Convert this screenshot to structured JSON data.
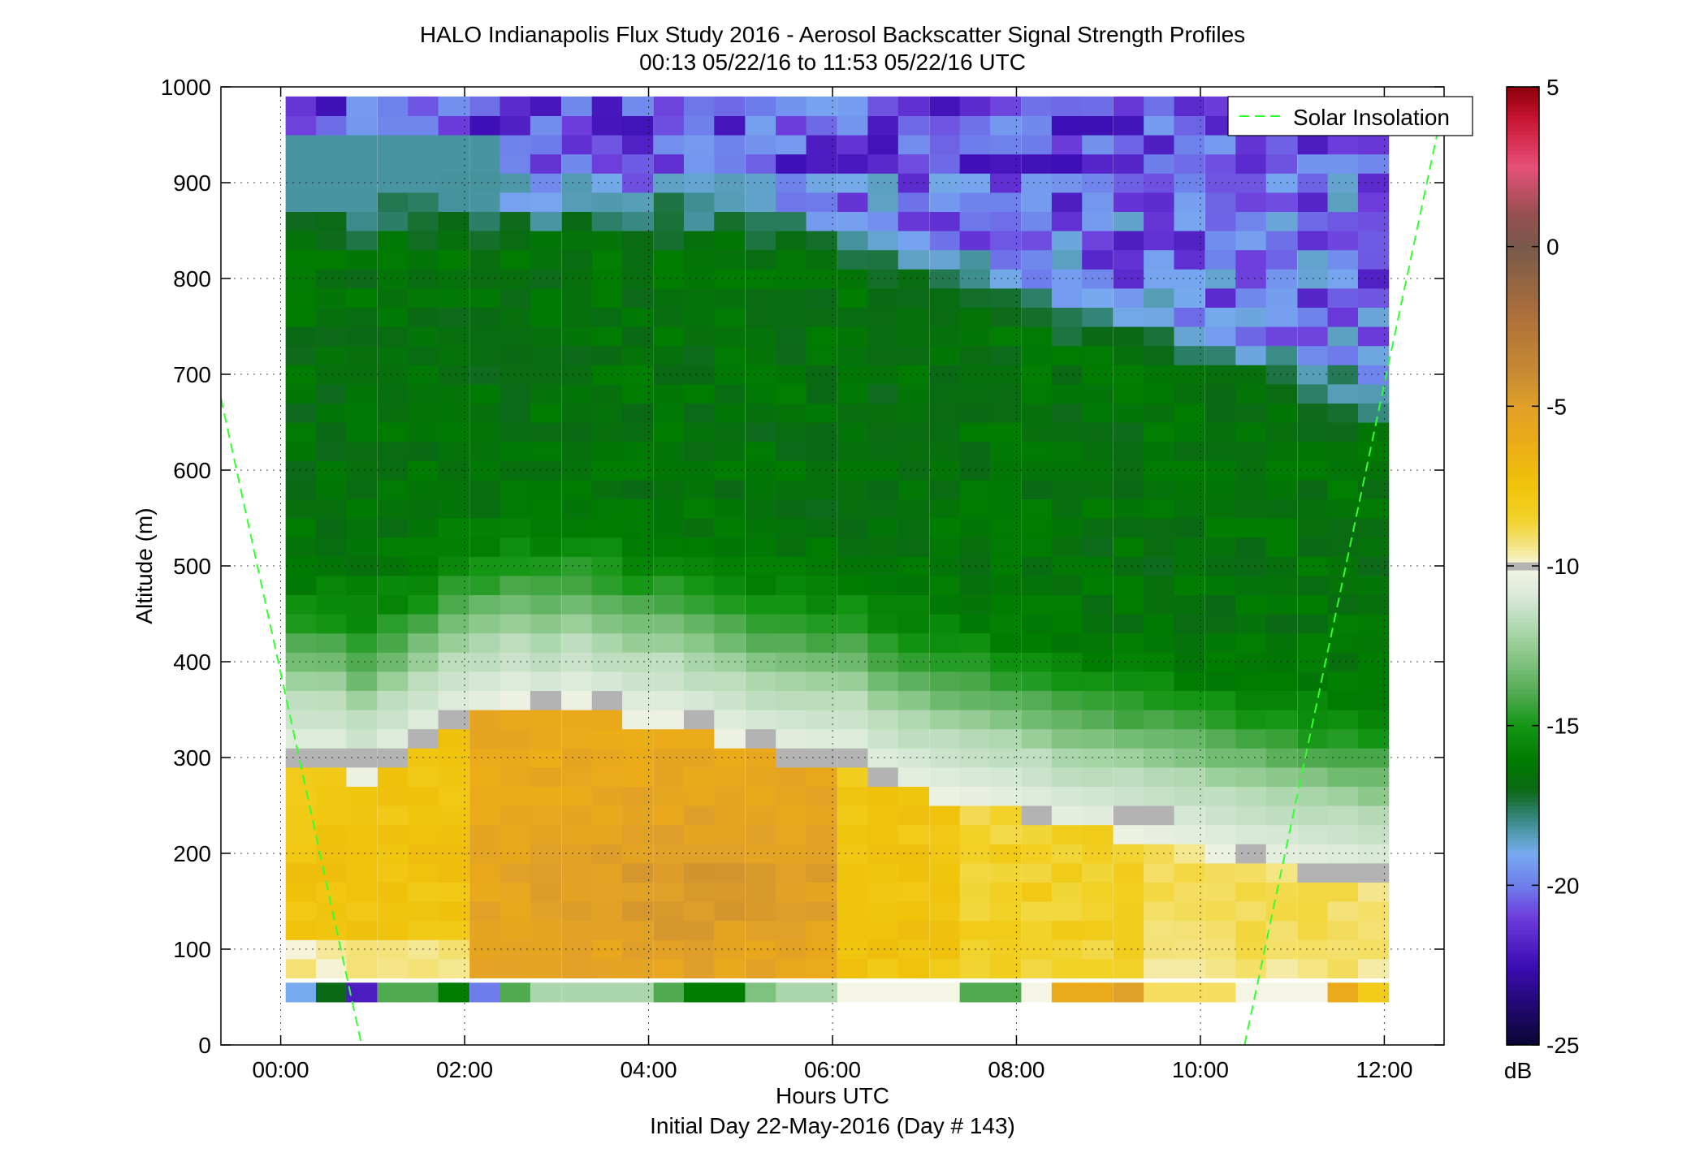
{
  "chart_data": {
    "type": "heatmap",
    "title": "HALO Indianapolis Flux Study 2016 - Aerosol Backscatter Signal Strength Profiles",
    "subtitle": "00:13 05/22/16 to 11:53 05/22/16  UTC",
    "xlabel": "Hours UTC",
    "xlabel2": "Initial Day 22-May-2016 (Day # 143)",
    "ylabel": "Altitude (m)",
    "xlim": [
      -0.65,
      12.65
    ],
    "ylim": [
      0,
      1000
    ],
    "xticks": [
      0,
      2,
      4,
      6,
      8,
      10,
      12
    ],
    "xtick_labels": [
      "00:00",
      "02:00",
      "04:00",
      "06:00",
      "08:00",
      "10:00",
      "12:00"
    ],
    "yticks": [
      0,
      100,
      200,
      300,
      400,
      500,
      600,
      700,
      800,
      900,
      1000
    ],
    "ytick_labels": [
      "0",
      "100",
      "200",
      "300",
      "400",
      "500",
      "600",
      "700",
      "800",
      "900",
      "1000"
    ],
    "grid": true,
    "legend": {
      "entries": [
        "Solar Insolation"
      ],
      "placement": "top-right"
    },
    "colorbar": {
      "label": "dB",
      "range": [
        -25,
        5
      ],
      "ticks": [
        5,
        0,
        -5,
        -10,
        -15,
        -20,
        -25
      ],
      "tick_labels": [
        "5",
        "0",
        "-5",
        "-10",
        "-15",
        "-20",
        "-25"
      ]
    },
    "colors": {
      "solar_line": "#33ff33",
      "gray_cell": "#b3b3b3",
      "yellow": "#f2cc00",
      "orange": "#e5a621",
      "green": "#0a8a0a",
      "blue": "#6f97ef",
      "purple": "#4020c8"
    },
    "x_hours": [
      0.22,
      0.55,
      0.88,
      1.22,
      1.55,
      1.88,
      2.22,
      2.55,
      2.88,
      3.22,
      3.55,
      3.88,
      4.22,
      4.55,
      4.88,
      5.22,
      5.55,
      5.88,
      6.22,
      6.55,
      6.88,
      7.22,
      7.55,
      7.88,
      8.22,
      8.55,
      8.88,
      9.22,
      9.55,
      9.88,
      10.22,
      10.55,
      10.88,
      11.22,
      11.55,
      11.88
    ],
    "y_bins_m": [
      50,
      80,
      100,
      120,
      140,
      160,
      180,
      200,
      220,
      240,
      260,
      280,
      300,
      320,
      340,
      360,
      380,
      400,
      420,
      440,
      460,
      480,
      500,
      520,
      540,
      560,
      580,
      600,
      620,
      640,
      660,
      680,
      700,
      720,
      740,
      760,
      780,
      800,
      820,
      840,
      860,
      880,
      900,
      920,
      940,
      960,
      980
    ],
    "pbl_top_m": [
      300,
      300,
      280,
      300,
      320,
      340,
      350,
      360,
      350,
      360,
      350,
      340,
      340,
      330,
      320,
      310,
      305,
      300,
      300,
      280,
      270,
      260,
      255,
      250,
      240,
      230,
      225,
      220,
      215,
      210,
      200,
      195,
      190,
      185,
      180,
      175
    ],
    "gray_boundary_m": [
      300,
      300,
      295,
      300,
      320,
      340,
      350,
      370,
      360,
      370,
      360,
      350,
      350,
      340,
      330,
      320,
      300,
      300,
      300,
      280,
      270,
      250,
      250,
      250,
      240,
      250,
      250,
      240,
      240,
      230,
      210,
      200,
      190,
      185,
      175,
      175
    ],
    "surface_row_db": [
      -19,
      -17,
      -22,
      -14,
      -14,
      -16,
      -20,
      -14,
      -12,
      -12,
      -12,
      -12,
      -14,
      -16,
      -16,
      -13,
      -12,
      -12,
      -10,
      -10,
      -10,
      -10,
      -14,
      -14,
      -10,
      -6,
      -6,
      -5,
      -9,
      -9,
      -9,
      -10,
      -10,
      -10,
      -6,
      -8
    ],
    "legend_line": "dashed green: Solar Insolation, rising from 0 m near 00:52 and 10:30 UTC"
  }
}
